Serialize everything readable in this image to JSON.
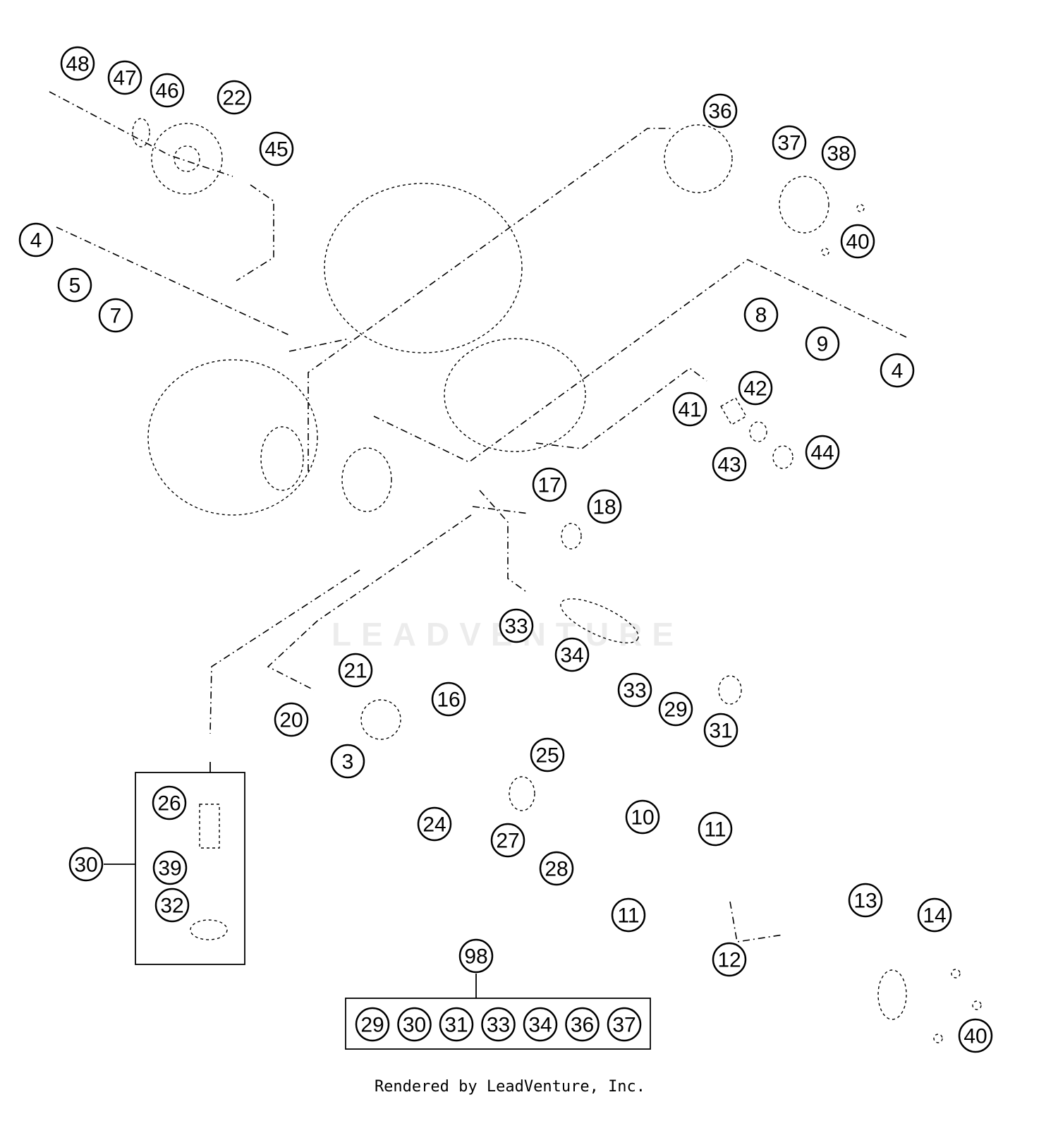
{
  "diagram": {
    "callouts": [
      "48",
      "47",
      "46",
      "22",
      "45",
      "36",
      "37",
      "38",
      "40",
      "4",
      "5",
      "7",
      "8",
      "9",
      "4",
      "42",
      "41",
      "43",
      "44",
      "17",
      "18",
      "33",
      "34",
      "21",
      "20",
      "16",
      "33",
      "29",
      "31",
      "3",
      "25",
      "26",
      "10",
      "11",
      "24",
      "27",
      "30",
      "39",
      "28",
      "32",
      "11",
      "13",
      "14",
      "12",
      "98",
      "40"
    ],
    "kit_98_items": [
      "29",
      "30",
      "31",
      "33",
      "34",
      "36",
      "37"
    ],
    "group_30_items": [
      "26",
      "39",
      "32"
    ]
  },
  "watermark": "LEADVENTURE",
  "footer": "Rendered by LeadVenture, Inc."
}
